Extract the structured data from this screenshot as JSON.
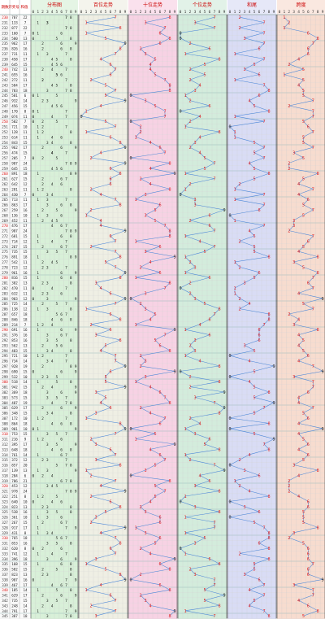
{
  "header": {
    "col_period": "期数",
    "col_draw": "开奖号",
    "col_sum": "和值",
    "sections": [
      "分布图",
      "百位走势",
      "十位走势",
      "个位走势",
      "和尾",
      "跨度"
    ]
  },
  "colors": {
    "bg_dist": "#d8f0d8",
    "bg_hundreds": "#efefe4",
    "bg_tens": "#f7d2e4",
    "bg_ones": "#d3ecdc",
    "bg_sumtail": "#d9dcf5",
    "bg_span": "#f7dccf",
    "line": "#4a86d8",
    "hot": "#e02020",
    "title": "#cc0000"
  },
  "chart_data": {
    "type": "table",
    "title": "",
    "periods": [
      230,
      231,
      232,
      233,
      234,
      235,
      236,
      237,
      238,
      239,
      240,
      241,
      242,
      243,
      244,
      245,
      246,
      247,
      248,
      249,
      250,
      251,
      252,
      253,
      254,
      255,
      256,
      257,
      258,
      259,
      260,
      261,
      262,
      263,
      264,
      265,
      266,
      267,
      268,
      269,
      270,
      271,
      272,
      273,
      274,
      275,
      276,
      277,
      278,
      279,
      280,
      281,
      282,
      283,
      284,
      285,
      286,
      287,
      288,
      289,
      290,
      291,
      292,
      293,
      294,
      295,
      296,
      297,
      298,
      299,
      300,
      301,
      302,
      303,
      304,
      305,
      306,
      307,
      308,
      309,
      310,
      311,
      312,
      313,
      314,
      315,
      316,
      317,
      318,
      319,
      320,
      321,
      322,
      323,
      324,
      325,
      326,
      327,
      328,
      329,
      330,
      331,
      332,
      333,
      334,
      335,
      336,
      337,
      338,
      339,
      340,
      341,
      342,
      343,
      344,
      345
    ],
    "draws": [
      "787",
      "133",
      "877",
      "160",
      "580",
      "962",
      "826",
      "731",
      "458",
      "645",
      "742",
      "655",
      "272",
      "584",
      "783",
      "501",
      "932",
      "456",
      "170",
      "074",
      "502",
      "721",
      "128",
      "614",
      "843",
      "962",
      "474",
      "205",
      "987",
      "645",
      "891",
      "627",
      "642",
      "281",
      "430",
      "713",
      "863",
      "259",
      "136",
      "452",
      "476",
      "987",
      "681",
      "714",
      "267",
      "735",
      "891",
      "542",
      "723",
      "961",
      "816",
      "382",
      "470",
      "632",
      "903",
      "725",
      "138",
      "657",
      "846",
      "214",
      "691",
      "376",
      "853",
      "562",
      "483",
      "721",
      "734",
      "928",
      "690",
      "532",
      "518",
      "942",
      "369",
      "573",
      "487",
      "629",
      "348",
      "172",
      "864",
      "901",
      "753",
      "216",
      "395",
      "648",
      "761",
      "372",
      "857",
      "139",
      "204",
      "786",
      "453",
      "978",
      "251",
      "640",
      "823",
      "538",
      "361",
      "267",
      "917",
      "431",
      "765",
      "853",
      "620",
      "741",
      "396",
      "168",
      "582",
      "823",
      "907",
      "467",
      "185",
      "629",
      "735",
      "248",
      "791",
      "387"
    ]
  }
}
